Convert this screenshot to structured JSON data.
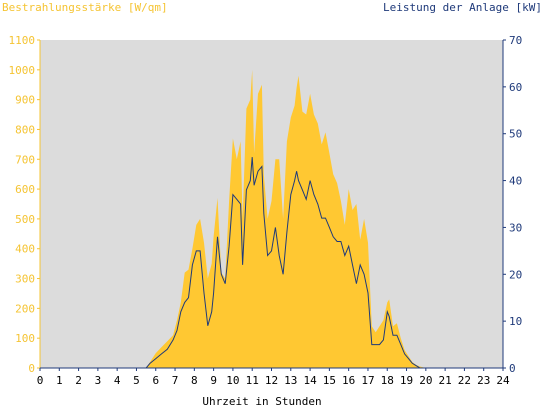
{
  "chart_data": {
    "type": "area",
    "title_left": "Bestrahlungsstärke [W/qm]",
    "title_right": "Leistung der Anlage [kW]",
    "xlabel": "Uhrzeit in Stunden",
    "xlim": [
      0,
      24
    ],
    "x_ticks": [
      "0",
      "1",
      "2",
      "3",
      "4",
      "5",
      "6",
      "7",
      "8",
      "9",
      "10",
      "11",
      "12",
      "13",
      "14",
      "15",
      "16",
      "17",
      "18",
      "19",
      "20",
      "21",
      "22",
      "23",
      "24"
    ],
    "y_left": {
      "lim": [
        0,
        1100
      ],
      "ticks": [
        "0",
        "100",
        "200",
        "300",
        "400",
        "500",
        "600",
        "700",
        "800",
        "900",
        "1000",
        "1100"
      ]
    },
    "y_right": {
      "lim": [
        0,
        70
      ],
      "ticks": [
        "0",
        "10",
        "20",
        "30",
        "40",
        "50",
        "60",
        "70"
      ]
    },
    "grid": false,
    "series": [
      {
        "axis": "left",
        "style": "area",
        "color": "#ffc832",
        "x": [
          0,
          5.5,
          5.7,
          6.0,
          6.3,
          6.6,
          6.9,
          7.1,
          7.3,
          7.5,
          7.7,
          7.9,
          8.1,
          8.3,
          8.5,
          8.7,
          8.9,
          9.0,
          9.2,
          9.4,
          9.6,
          9.8,
          10.0,
          10.2,
          10.4,
          10.5,
          10.7,
          10.9,
          11.0,
          11.1,
          11.3,
          11.5,
          11.6,
          11.8,
          12.0,
          12.2,
          12.4,
          12.6,
          12.8,
          13.0,
          13.2,
          13.3,
          13.4,
          13.6,
          13.8,
          14.0,
          14.2,
          14.4,
          14.6,
          14.8,
          15.0,
          15.2,
          15.4,
          15.6,
          15.8,
          16.0,
          16.2,
          16.4,
          16.6,
          16.8,
          17.0,
          17.2,
          17.4,
          17.6,
          17.8,
          18.0,
          18.1,
          18.3,
          18.5,
          18.7,
          18.9,
          19.1,
          19.3,
          19.5,
          19.7,
          20.0,
          24
        ],
        "values": [
          0,
          0,
          20,
          50,
          70,
          90,
          110,
          160,
          220,
          320,
          330,
          400,
          480,
          500,
          420,
          300,
          350,
          440,
          570,
          320,
          300,
          560,
          770,
          700,
          760,
          500,
          870,
          900,
          1000,
          720,
          920,
          950,
          650,
          500,
          560,
          700,
          700,
          500,
          760,
          840,
          880,
          940,
          980,
          860,
          850,
          920,
          850,
          820,
          750,
          790,
          720,
          650,
          620,
          560,
          480,
          600,
          530,
          550,
          430,
          500,
          420,
          140,
          120,
          140,
          160,
          220,
          230,
          140,
          150,
          100,
          60,
          40,
          20,
          10,
          5,
          0,
          0
        ]
      },
      {
        "axis": "right",
        "style": "line",
        "color": "#1f3a7a",
        "x": [
          0,
          5.5,
          5.7,
          6.0,
          6.3,
          6.6,
          6.9,
          7.1,
          7.3,
          7.5,
          7.7,
          7.9,
          8.1,
          8.3,
          8.5,
          8.7,
          8.9,
          9.0,
          9.2,
          9.4,
          9.6,
          9.8,
          10.0,
          10.2,
          10.4,
          10.5,
          10.7,
          10.9,
          11.0,
          11.1,
          11.3,
          11.5,
          11.6,
          11.8,
          12.0,
          12.2,
          12.4,
          12.6,
          12.8,
          13.0,
          13.2,
          13.3,
          13.4,
          13.6,
          13.8,
          14.0,
          14.2,
          14.4,
          14.6,
          14.8,
          15.0,
          15.2,
          15.4,
          15.6,
          15.8,
          16.0,
          16.2,
          16.4,
          16.6,
          16.8,
          17.0,
          17.2,
          17.4,
          17.6,
          17.8,
          18.0,
          18.1,
          18.3,
          18.5,
          18.7,
          18.9,
          19.1,
          19.3,
          19.5,
          19.7,
          20.0,
          24
        ],
        "values": [
          0,
          0,
          1,
          2,
          3,
          4,
          6,
          8,
          12,
          14,
          15,
          22,
          25,
          25,
          16,
          9,
          12,
          16,
          28,
          20,
          18,
          26,
          37,
          36,
          35,
          22,
          38,
          40,
          45,
          39,
          42,
          43,
          33,
          24,
          25,
          30,
          24,
          20,
          29,
          37,
          40,
          42,
          40,
          38,
          36,
          40,
          37,
          35,
          32,
          32,
          30,
          28,
          27,
          27,
          24,
          26,
          22,
          18,
          22,
          20,
          16,
          5,
          5,
          5,
          6,
          12,
          11,
          7,
          7,
          5,
          3,
          2,
          1,
          0.5,
          0,
          0,
          0
        ]
      }
    ]
  }
}
